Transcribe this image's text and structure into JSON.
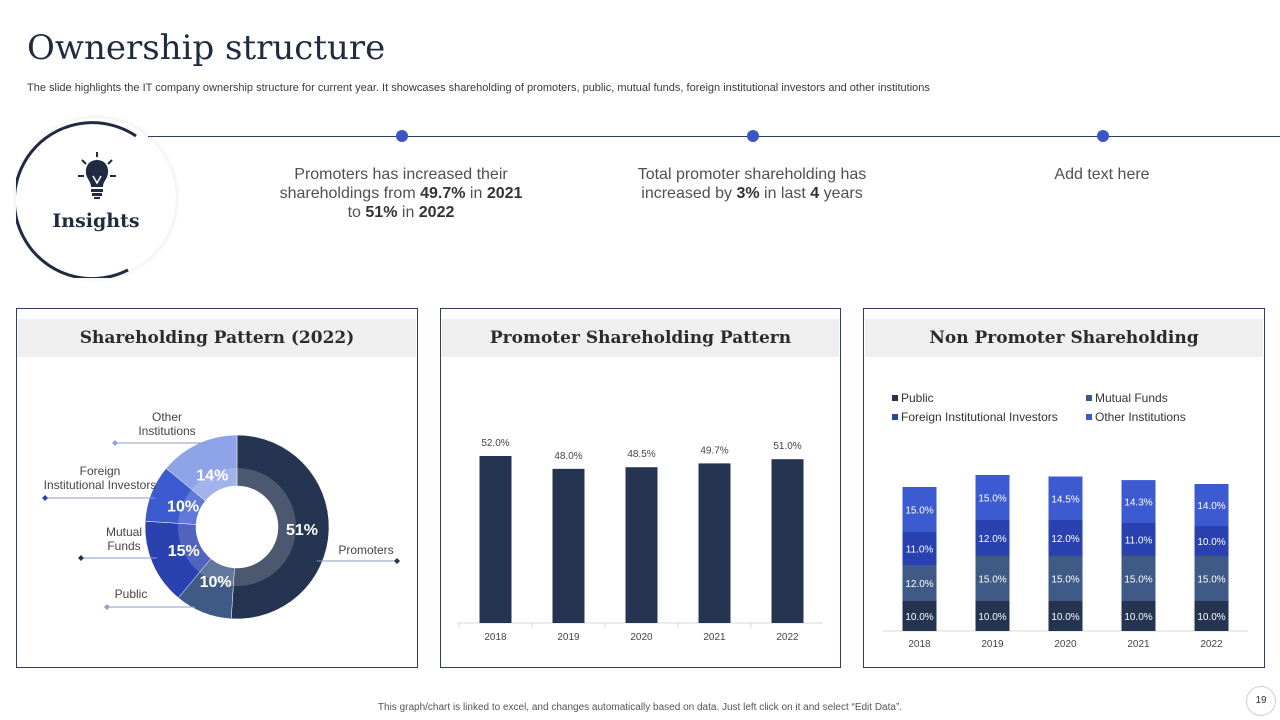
{
  "header": {
    "title": "Ownership structure",
    "subtitle": "The slide highlights the IT company ownership structure for current year.  It showcases shareholding of promoters, public, mutual funds, foreign institutional investors and other institutions"
  },
  "insights": {
    "label": "Insights",
    "icon": "lightbulb-icon",
    "items": [
      {
        "parts": [
          "Promoters has increased their shareholdings from ",
          "49.7%",
          " in ",
          "2021",
          " to ",
          "51%",
          " in ",
          "2022"
        ]
      },
      {
        "parts": [
          "Total promoter shareholding has increased by ",
          "3%",
          " in last ",
          "4",
          " years"
        ]
      },
      {
        "parts": [
          "Add text here"
        ]
      }
    ]
  },
  "colors": {
    "navy": "#253450",
    "slate": "#3f5a86",
    "royal": "#2a42b0",
    "blue": "#3d5bd0",
    "light": "#8ea3e8",
    "accent": "#3a55c4"
  },
  "chart_data": [
    {
      "type": "pie",
      "title": "Shareholding Pattern (2022)",
      "categories": [
        "Promoters",
        "Public",
        "Mutual Funds",
        "Foreign Institutional Investors",
        "Other Institutions"
      ],
      "labels": [
        "Promoters",
        "Public",
        "Mutual\nFunds",
        "Foreign\nInstitutional Investors",
        "Other\nInstitutions"
      ],
      "values": [
        51,
        10,
        15,
        10,
        14
      ],
      "value_labels": [
        "51%",
        "10%",
        "15%",
        "10%",
        "14%"
      ]
    },
    {
      "type": "bar",
      "title": "Promoter Shareholding Pattern",
      "categories": [
        "2018",
        "2019",
        "2020",
        "2021",
        "2022"
      ],
      "values": [
        52.0,
        48.0,
        48.5,
        49.7,
        51.0
      ],
      "value_labels": [
        "52.0%",
        "48.0%",
        "48.5%",
        "49.7%",
        "51.0%"
      ],
      "ylim": [
        0,
        60
      ]
    },
    {
      "type": "bar",
      "stacked": true,
      "title": "Non Promoter Shareholding",
      "categories": [
        "2018",
        "2019",
        "2020",
        "2021",
        "2022"
      ],
      "legend": [
        "Public",
        "Mutual Funds",
        "Foreign Institutional Investors",
        "Other Institutions"
      ],
      "series": [
        {
          "name": "Public",
          "values": [
            10.0,
            10.0,
            10.0,
            10.0,
            10.0
          ],
          "labels": [
            "10.0%",
            "10.0%",
            "10.0%",
            "10.0%",
            "10.0%"
          ]
        },
        {
          "name": "Mutual Funds",
          "values": [
            12.0,
            15.0,
            15.0,
            15.0,
            15.0
          ],
          "labels": [
            "12.0%",
            "15.0%",
            "15.0%",
            "15.0%",
            "15.0%"
          ]
        },
        {
          "name": "Foreign Institutional Investors",
          "values": [
            11.0,
            12.0,
            12.0,
            11.0,
            10.0
          ],
          "labels": [
            "11.0%",
            "12.0%",
            "12.0%",
            "11.0%",
            "10.0%"
          ]
        },
        {
          "name": "Other Institutions",
          "values": [
            15.0,
            15.0,
            14.5,
            14.3,
            14.0
          ],
          "labels": [
            "15.0%",
            "15.0%",
            "14.5%",
            "14.3%",
            "14.0%"
          ]
        }
      ],
      "ylim": [
        0,
        60
      ]
    }
  ],
  "footer": {
    "note": "This graph/chart is linked to excel, and changes automatically based on data. Just left click on it and select “Edit Data”.",
    "page": "19"
  }
}
